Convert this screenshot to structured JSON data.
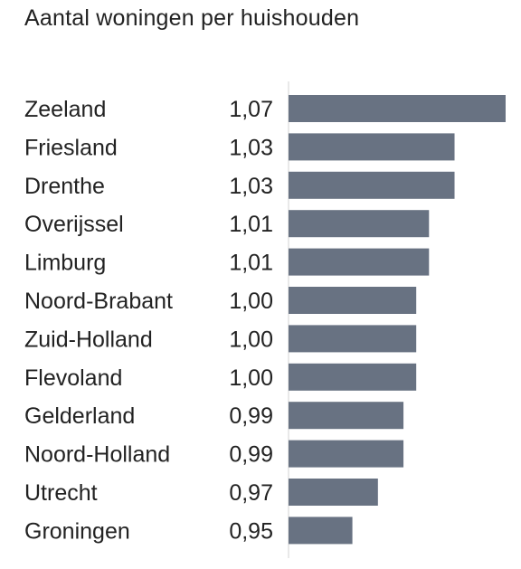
{
  "chart_data": {
    "type": "bar",
    "orientation": "horizontal",
    "title": "Aantal woningen per huishouden",
    "categories": [
      "Zeeland",
      "Friesland",
      "Drenthe",
      "Overijssel",
      "Limburg",
      "Noord-Brabant",
      "Zuid-Holland",
      "Flevoland",
      "Gelderland",
      "Noord-Holland",
      "Utrecht",
      "Groningen"
    ],
    "values": [
      1.07,
      1.03,
      1.03,
      1.01,
      1.01,
      1.0,
      1.0,
      1.0,
      0.99,
      0.99,
      0.97,
      0.95
    ],
    "value_labels": [
      "1,07",
      "1,03",
      "1,03",
      "1,01",
      "1,01",
      "1,00",
      "1,00",
      "1,00",
      "0,99",
      "0,99",
      "0,97",
      "0,95"
    ],
    "xlim": [
      0.9,
      1.07
    ],
    "grid": false,
    "bar_color": "#687282",
    "axis_color": "#e2e2e2"
  }
}
